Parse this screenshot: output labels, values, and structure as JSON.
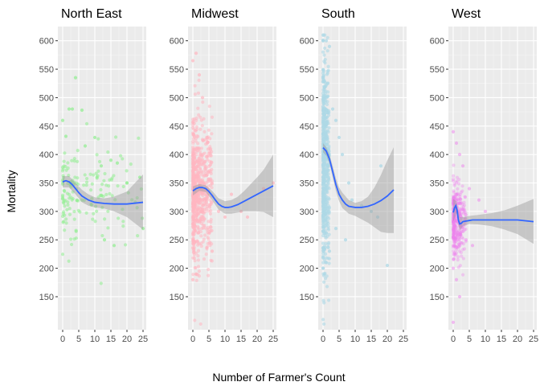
{
  "chart_data": {
    "type": "scatter",
    "xlabel": "Number of Farmer's Count",
    "ylabel": "Mortality",
    "xlim": [
      -1.5,
      26
    ],
    "ylim": [
      92,
      625
    ],
    "x_ticks": [
      0,
      5,
      10,
      15,
      20,
      25
    ],
    "x_tick_labels": [
      "0",
      "5",
      "10",
      "15",
      "20",
      "25"
    ],
    "y_ticks": [
      150,
      200,
      250,
      300,
      350,
      400,
      450,
      500,
      550,
      600
    ],
    "y_tick_labels": [
      "150",
      "200",
      "250",
      "300",
      "350",
      "400",
      "450",
      "500",
      "550",
      "600"
    ],
    "grid": true,
    "smoother": {
      "color": "#3366ff",
      "band_color": "#999999"
    },
    "panels": [
      {
        "name": "North East",
        "color": "#90ee90",
        "alpha": 0.55,
        "point_cluster": {
          "x_range": [
            0,
            25
          ],
          "y_mean": 335,
          "y_sd": 40,
          "n": 160
        },
        "points": [
          [
            4,
            535
          ],
          [
            2,
            480
          ],
          [
            3,
            480
          ],
          [
            6,
            478
          ],
          [
            0,
            460
          ],
          [
            1,
            432
          ],
          [
            7,
            415
          ],
          [
            10,
            430
          ],
          [
            15,
            390
          ],
          [
            17,
            385
          ],
          [
            12,
            380
          ],
          [
            20,
            350
          ],
          [
            24,
            360
          ],
          [
            25,
            270
          ],
          [
            16,
            240
          ],
          [
            13,
            250
          ]
        ],
        "smooth": {
          "x": [
            0,
            1,
            2,
            3,
            4,
            5,
            6,
            8,
            10,
            13,
            16,
            20,
            25
          ],
          "y": [
            352,
            354,
            352,
            347,
            340,
            333,
            327,
            320,
            316,
            314,
            313,
            313,
            316
          ]
        },
        "band": {
          "x": [
            0,
            2,
            4,
            6,
            8,
            10,
            13,
            16,
            20,
            25
          ],
          "upper": [
            362,
            362,
            350,
            338,
            330,
            325,
            323,
            326,
            335,
            365
          ],
          "lower": [
            342,
            342,
            330,
            316,
            310,
            307,
            305,
            300,
            290,
            268
          ]
        }
      },
      {
        "name": "Midwest",
        "color": "#ffb6c1",
        "alpha": 0.55,
        "point_cluster": {
          "x_range": [
            0,
            6
          ],
          "y_mean": 340,
          "y_sd": 60,
          "n": 700
        },
        "points": [
          [
            1,
            578
          ],
          [
            0,
            565
          ],
          [
            2,
            540
          ],
          [
            3,
            500
          ],
          [
            8,
            300
          ],
          [
            10,
            290
          ],
          [
            12,
            330
          ],
          [
            15,
            300
          ],
          [
            17,
            290
          ],
          [
            22,
            340
          ],
          [
            25,
            350
          ],
          [
            0,
            180
          ],
          [
            1,
            190
          ],
          [
            6,
            230
          ]
        ],
        "smooth": {
          "x": [
            0,
            1,
            2,
            3,
            4,
            5,
            6,
            7,
            8,
            9,
            10,
            11,
            12,
            14,
            16,
            18,
            20,
            22,
            25
          ],
          "y": [
            336,
            340,
            342,
            342,
            340,
            335,
            328,
            320,
            313,
            309,
            307,
            307,
            308,
            312,
            318,
            324,
            330,
            336,
            345
          ]
        },
        "band": {
          "x": [
            0,
            2,
            4,
            6,
            8,
            10,
            12,
            14,
            16,
            18,
            20,
            22,
            25
          ],
          "upper": [
            344,
            348,
            346,
            336,
            323,
            318,
            320,
            326,
            336,
            348,
            360,
            373,
            400
          ],
          "lower": [
            328,
            336,
            334,
            320,
            303,
            296,
            296,
            298,
            300,
            300,
            300,
            299,
            290
          ]
        }
      },
      {
        "name": "South",
        "color": "#add8e6",
        "alpha": 0.6,
        "point_cluster": {
          "x_range": [
            0,
            2
          ],
          "y_mean": 380,
          "y_sd": 90,
          "n": 600
        },
        "points": [
          [
            0,
            600
          ],
          [
            1,
            600
          ],
          [
            2,
            590
          ],
          [
            3,
            480
          ],
          [
            4,
            460
          ],
          [
            5,
            430
          ],
          [
            6,
            400
          ],
          [
            8,
            350
          ],
          [
            9,
            320
          ],
          [
            12,
            310
          ],
          [
            15,
            300
          ],
          [
            17,
            290
          ],
          [
            20,
            205
          ],
          [
            18,
            380
          ],
          [
            0,
            200
          ],
          [
            1,
            210
          ],
          [
            2,
            230
          ],
          [
            4,
            270
          ],
          [
            7,
            250
          ]
        ],
        "smooth": {
          "x": [
            0,
            1,
            2,
            3,
            4,
            5,
            6,
            7,
            8,
            10,
            12,
            14,
            16,
            18,
            20,
            22
          ],
          "y": [
            412,
            406,
            392,
            370,
            347,
            330,
            320,
            313,
            309,
            307,
            307,
            309,
            313,
            319,
            327,
            338
          ]
        },
        "band": {
          "x": [
            0,
            1,
            2,
            3,
            4,
            5,
            6,
            8,
            10,
            12,
            14,
            16,
            18,
            20,
            22
          ],
          "upper": [
            420,
            413,
            400,
            380,
            358,
            342,
            333,
            320,
            315,
            318,
            326,
            342,
            364,
            390,
            413
          ],
          "lower": [
            404,
            398,
            384,
            360,
            336,
            318,
            306,
            296,
            292,
            286,
            280,
            272,
            264,
            262,
            262
          ]
        }
      },
      {
        "name": "West",
        "color": "#ee82ee",
        "alpha": 0.35,
        "point_cluster": {
          "x_range": [
            0,
            4
          ],
          "y_mean": 285,
          "y_sd": 30,
          "n": 350
        },
        "points": [
          [
            0,
            440
          ],
          [
            1,
            420
          ],
          [
            2,
            400
          ],
          [
            3,
            380
          ],
          [
            5,
            340
          ],
          [
            8,
            320
          ],
          [
            10,
            300
          ],
          [
            0,
            200
          ],
          [
            1,
            180
          ],
          [
            2,
            150
          ],
          [
            0,
            105
          ],
          [
            4,
            250
          ],
          [
            6,
            240
          ]
        ],
        "smooth": {
          "x": [
            0,
            0.4,
            0.8,
            1.2,
            1.6,
            2,
            2.5,
            3,
            4,
            5,
            6,
            8,
            10,
            15,
            20,
            25
          ],
          "y": [
            298,
            306,
            310,
            302,
            285,
            278,
            279,
            282,
            283,
            284,
            285,
            285,
            285,
            285,
            285,
            282
          ]
        },
        "band": {
          "x": [
            0,
            1,
            2,
            3,
            5,
            8,
            12,
            16,
            20,
            25
          ],
          "upper": [
            322,
            318,
            290,
            290,
            292,
            294,
            297,
            302,
            310,
            322
          ],
          "lower": [
            282,
            296,
            266,
            274,
            278,
            277,
            274,
            268,
            260,
            243
          ]
        }
      }
    ]
  }
}
